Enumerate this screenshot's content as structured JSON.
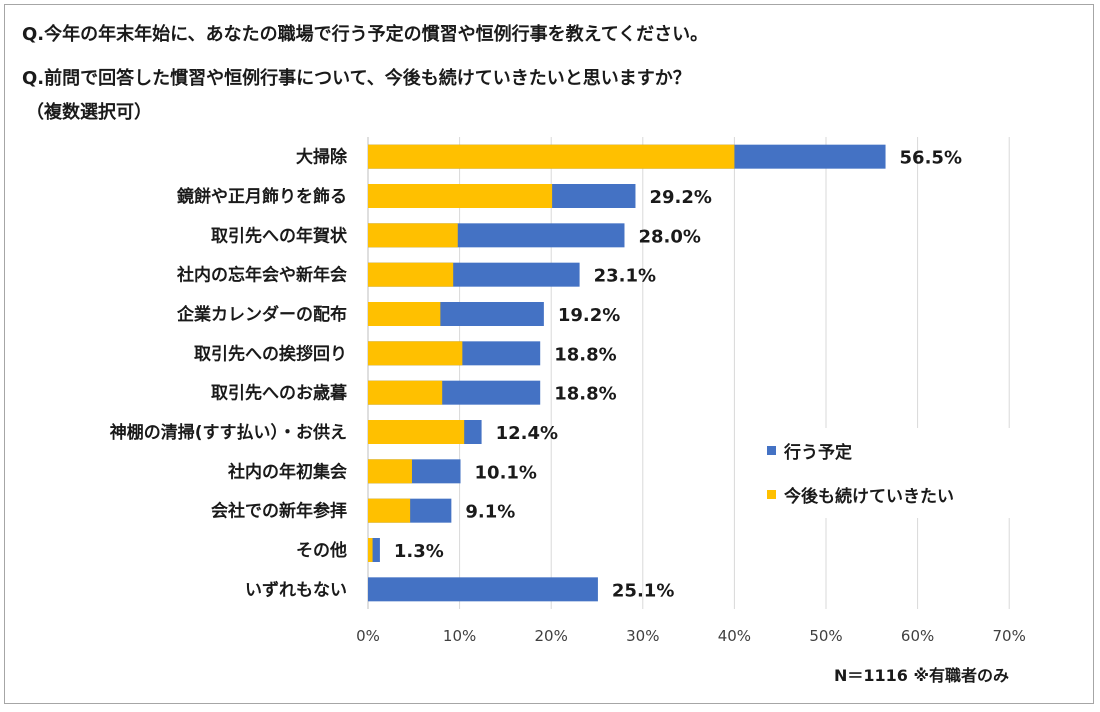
{
  "question1": "Q.今年の年末年始に、あなたの職場で行う予定の慣習や恒例行事を教えてください。",
  "question2": "Q.前問で回答した慣習や恒例行事について、今後も続けていきたいと思いますか？",
  "question_note": "（複数選択可）",
  "footnote": "N＝1116 ※有職者のみ",
  "colors": {
    "planned": "#4472C4",
    "continue": "#FFC000",
    "grid": "#d9d9d9"
  },
  "chart_data": {
    "type": "bar",
    "orientation": "horizontal",
    "overlay": true,
    "categories": [
      "大掃除",
      "鏡餅や正月飾りを飾る",
      "取引先への年賀状",
      "社内の忘年会や新年会",
      "企業カレンダーの配布",
      "取引先への挨拶回り",
      "取引先へのお歳暮",
      "神棚の清掃(すす払い）・お供え",
      "社内の年初集会",
      "会社での新年参拝",
      "その他",
      "いずれもない"
    ],
    "series": [
      {
        "name": "行う予定",
        "values": [
          56.5,
          29.2,
          28.0,
          23.1,
          19.2,
          18.8,
          18.8,
          12.4,
          10.1,
          9.1,
          1.3,
          25.1
        ]
      },
      {
        "name": "今後も続けていきたい",
        "values": [
          40.0,
          20.1,
          9.8,
          9.3,
          7.9,
          10.3,
          8.1,
          10.5,
          4.8,
          4.6,
          0.5,
          0
        ]
      }
    ],
    "value_labels": [
      "56.5%",
      "29.2%",
      "28.0%",
      "23.1%",
      "19.2%",
      "18.8%",
      "18.8%",
      "12.4%",
      "10.1%",
      "9.1%",
      "1.3%",
      "25.1%"
    ],
    "xticks": [
      "0%",
      "10%",
      "20%",
      "30%",
      "40%",
      "50%",
      "60%",
      "70%"
    ],
    "xlim": [
      0,
      70
    ],
    "grid": true,
    "legend_position": "lower-right"
  }
}
